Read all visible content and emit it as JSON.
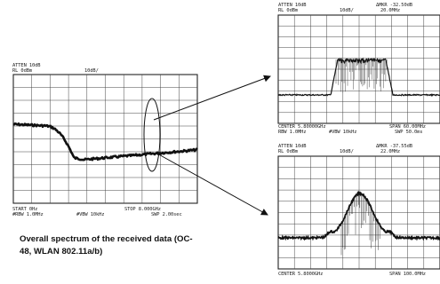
{
  "left_scope": {
    "header_line1": "ATTEN 10dB",
    "header_line2_left": "RL 0dBm",
    "header_line2_right": "10dB/",
    "footer_line1_left": "START 0Hz",
    "footer_line1_right": "STOP 8.000GHz",
    "footer_line2_left": "#RBW 1.0MHz",
    "footer_line2_mid": "#VBW 10kHz",
    "footer_line2_right": "SWP 2.00sec"
  },
  "top_scope": {
    "header_line1_left": "ATTEN 10dB",
    "header_line1_right": "ΔMKR -32.50dB",
    "header_line2_left": "RL 0dBm",
    "header_line2_mid": "10dB/",
    "header_line2_right": "20.0MHz",
    "footer_line1_left": "CENTER 5.80000GHz",
    "footer_line1_right": "SPAN 60.00MHz",
    "footer_line2_left": "RBW 1.0MHz",
    "footer_line2_mid": "#VBW 10kHz",
    "footer_line2_right": "SWP 50.0ms"
  },
  "bottom_scope": {
    "header_line1_left": "ATTEN 10dB",
    "header_line1_right": "ΔMKR -37.55dB",
    "header_line2_left": "RL 0dBm",
    "header_line2_mid": "10dB/",
    "header_line2_right": "22.0MHz",
    "footer_line1_left": "CENTER 5.8000GHz",
    "footer_line1_right": "SPAN 100.0MHz"
  },
  "caption": "Overall spectrum of the received data (OC-48, WLAN 802.11a/b)"
}
